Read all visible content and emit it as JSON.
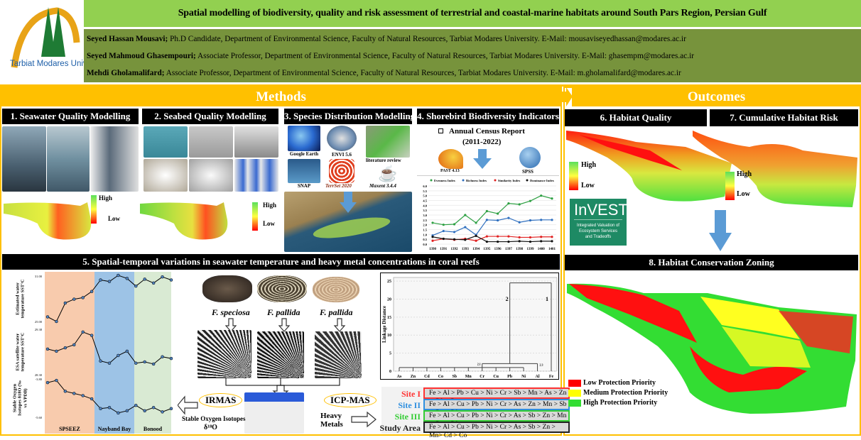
{
  "header": {
    "logo_text": "Tarbiat Modares University",
    "title": "Spatial modelling of biodiversity, quality and risk assessment of terrestrial and coastal-marine habitats around South Pars Region, Persian Gulf",
    "authors": [
      {
        "name": "Seyed Hassan Mousavi;",
        "details": " Ph.D Candidate, Department of Environmental Science, Faculty of Natural Resources, Tarbiat Modares University. E-Mail: mousaviseyedhassan@modares.ac.ir"
      },
      {
        "name": "Seyed Mahmoud Ghasempouri;",
        "details": " Associate Professor, Department of Environmental Science, Faculty of Natural Resources, Tarbiat Modares University. E-Mail: ghasempm@modares.ac.ir"
      },
      {
        "name": "Mehdi Gholamalifard;",
        "details": " Associate Professor, Department of Environmental Science, Faculty of Natural Resources, Tarbiat Modares University. E-Mail: m.gholamalifard@modares.ac.ir"
      }
    ]
  },
  "colors": {
    "title_bar": "#92d050",
    "author_bar": "#77933c",
    "accent": "#ffc000",
    "section_header": "#000000"
  },
  "methods": {
    "label": "Methods",
    "s1": {
      "title": "1. Seawater Quality Modelling",
      "legend_high": "High",
      "legend_low": "Low"
    },
    "s2": {
      "title": "2. Seabed Quality Modelling",
      "legend_high": "High",
      "legend_low": "Low"
    },
    "s3": {
      "title": "3. Species Distribution Modelling",
      "tools": [
        "Google Earth",
        "ENVI 5.6",
        "literature review",
        "SNAP",
        "TerrSet 2020",
        "Maxent 3.4.4"
      ]
    },
    "s4": {
      "title": "4. Shorebird Biodiversity Indicators",
      "census": "Annual Census Report",
      "period": "(2011-2022)",
      "tool_left": "PAST 4.13",
      "tool_right": "SPSS",
      "chart_data": {
        "type": "line",
        "x": [
          "1390",
          "1391",
          "1392",
          "1393",
          "1394",
          "1395",
          "1396",
          "1397",
          "1398",
          "1399",
          "1400",
          "1401"
        ],
        "ylim": [
          0,
          6
        ],
        "yticks": [
          "0.0",
          "0.5",
          "1.0",
          "1.5",
          "2.0",
          "2.5",
          "3.0",
          "3.5",
          "4.0",
          "4.5",
          "5.0",
          "5.5",
          "6.0"
        ],
        "series": [
          {
            "name": "Evenness Index",
            "color": "#2ea043",
            "values": [
              2.2,
              2.0,
              2.05,
              3.0,
              2.2,
              3.4,
              3.15,
              4.2,
              4.1,
              4.45,
              5.0,
              4.7
            ]
          },
          {
            "name": "Richness Index",
            "color": "#2f6fbf",
            "values": [
              0.9,
              1.35,
              1.25,
              1.75,
              0.95,
              2.5,
              2.45,
              2.7,
              2.25,
              2.45,
              2.5,
              2.5
            ]
          },
          {
            "name": "Similarity Index",
            "color": "#e02020",
            "values": [
              0.35,
              0.55,
              0.45,
              0.55,
              0.35,
              0.8,
              0.8,
              0.8,
              0.7,
              0.7,
              0.75,
              0.75
            ]
          },
          {
            "name": "Dominance Index",
            "color": "#111111",
            "values": [
              0.75,
              0.55,
              0.5,
              0.45,
              0.85,
              0.25,
              0.25,
              0.25,
              0.3,
              0.25,
              0.3,
              0.3
            ]
          }
        ]
      }
    },
    "s5": {
      "title": "5. Spatial-temporal variations in seawater temperature and heavy metal concentrations in coral reefs",
      "temp_chart": {
        "regions": [
          "SPSEEZ",
          "Nayband Bay",
          "Bonood"
        ],
        "panels": [
          {
            "ylabel": "Estimated water temperature SST°C",
            "ylim": [
              25,
              31
            ],
            "values": [
              25.6,
              25.0,
              27.4,
              27.9,
              28.1,
              28.9,
              30.4,
              30.2,
              31.0,
              30.6,
              29.6,
              30.5,
              30.0,
              30.8,
              30.4
            ]
          },
          {
            "ylabel": "ESA satellite water temperature SST°C",
            "ylim": [
              28.3,
              29.38
            ],
            "values": [
              28.9,
              28.85,
              28.93,
              29.0,
              29.3,
              29.22,
              28.62,
              28.57,
              28.75,
              28.85,
              28.57,
              28.6,
              28.55,
              28.72,
              28.68
            ]
          },
          {
            "ylabel": "Stable Oxygen Isotopes δ18O (‰ vs VPDB)",
            "ylim": [
              -5.6,
              -3.8
            ],
            "values": [
              -4.0,
              -3.9,
              -4.4,
              -4.5,
              -4.6,
              -4.75,
              -5.2,
              -5.15,
              -5.4,
              -5.3,
              -5.05,
              -5.3,
              -5.15,
              -5.35,
              -5.2
            ]
          }
        ]
      },
      "species": [
        "F. speciosa",
        "F. pallida",
        "F. pallida"
      ],
      "irmas": "IRMAS",
      "icp": "ICP-MAS",
      "isotopes": "Stable Oxygen Isotopes",
      "delta": "δ¹⁸O",
      "heavy_metals": "Heavy Metals",
      "dendrogram": {
        "ylabel": "Linkage Distance",
        "yticks": [
          "0",
          "5",
          "10",
          "15",
          "20",
          "25"
        ],
        "elements": [
          "As",
          "Zn",
          "Cd",
          "Co",
          "Sb",
          "Mn",
          "Cr",
          "Cu",
          "Pb",
          "Ni",
          "Al",
          "Fe"
        ],
        "cluster_labels": [
          "2",
          "1",
          "2.1",
          "2.3"
        ]
      },
      "sites": [
        {
          "label": "Site I",
          "color": "#ff3333",
          "seq": "Fe > Al > Pb > Cu > Ni > Cr > Sb > Mn > As > Zn > Cd > Co"
        },
        {
          "label": "Site II",
          "color": "#2f8fdf",
          "seq": "Fe > Al > Cu > Pb > Ni > Cr > As > Zn > Mn > Sb > Co > Cd"
        },
        {
          "label": "Site III",
          "color": "#33cc33",
          "seq": "Fe > Al > Cu > Pb > Ni > Cr > As > Sb > Zn > Mn > Co > Cd"
        },
        {
          "label": "Study Area",
          "color": "#222222",
          "seq": "Fe > Al > Cu > Pb > Ni > Cr > As > Sb > Zn > Mn> Cd > Co"
        }
      ]
    }
  },
  "outcomes": {
    "label": "Outcomes",
    "s6": {
      "title": "6. Habitat Quality",
      "legend_high": "High",
      "legend_low": "Low"
    },
    "s7": {
      "title": "7. Cumulative Habitat Risk",
      "legend_high": "High",
      "legend_low": "Low"
    },
    "invest": {
      "logo": "InVEST",
      "tagline": "Integrated Valuation of Ecosystem Services and Tradeoffs"
    },
    "s8": {
      "title": "8. Habitat Conservation Zoning",
      "legend": [
        {
          "label": "Low Protection Priority",
          "color": "#ff0000"
        },
        {
          "label": "Medium Protection Priority",
          "color": "#ffff00"
        },
        {
          "label": "High Protection Priority",
          "color": "#33dd33"
        }
      ]
    }
  }
}
